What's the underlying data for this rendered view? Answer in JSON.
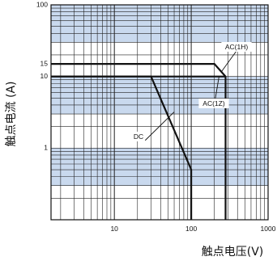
{
  "chart_data": {
    "type": "line",
    "title": "",
    "ylabel": "触点电流 (A)",
    "xlabel": "触点电压(V)",
    "x_scale": "log",
    "y_scale": "log",
    "xlim": [
      1.5,
      1000
    ],
    "ylim": [
      0.1,
      100
    ],
    "x_ticks": [
      {
        "value": 10,
        "label": "10"
      },
      {
        "value": 100,
        "label": "100"
      },
      {
        "value": 1000,
        "label": "1000"
      }
    ],
    "y_ticks": [
      {
        "value": 100,
        "label": "100"
      },
      {
        "value": 15,
        "label": "15"
      },
      {
        "value": 10,
        "label": "10"
      },
      {
        "value": 1,
        "label": "1"
      }
    ],
    "grid": true,
    "bands_color": "#c9d9ee",
    "line_color": "#111111",
    "series": [
      {
        "name": "AC(1H)",
        "x": [
          1.5,
          200,
          280,
          280
        ],
        "y": [
          15,
          15,
          10,
          0.1
        ]
      },
      {
        "name": "AC(1Z)",
        "x": [
          1.5,
          280
        ],
        "y": [
          10,
          10
        ]
      },
      {
        "name": "DC",
        "x": [
          1.5,
          30,
          100,
          100
        ],
        "y": [
          10,
          10,
          0.5,
          0.1
        ]
      }
    ],
    "annotations": [
      {
        "text": "AC(1H)",
        "series": "AC(1H)"
      },
      {
        "text": "AC(1Z)",
        "series": "AC(1Z)"
      },
      {
        "text": "DC",
        "series": "DC"
      }
    ]
  }
}
